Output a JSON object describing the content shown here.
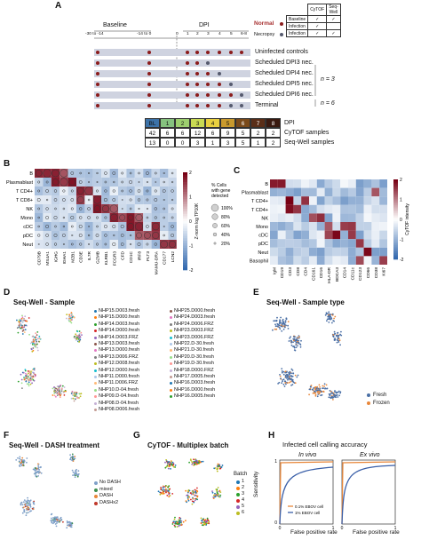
{
  "panels": [
    "A",
    "B",
    "C",
    "D",
    "E",
    "F",
    "G",
    "H"
  ],
  "panel_a": {
    "baseline_label": "Baseline",
    "dpi_label": "DPI",
    "axis_ticks": [
      "-30 to -14",
      "-14 to 0",
      "0",
      "1",
      "2",
      "3",
      "4",
      "5",
      "6-8"
    ],
    "rows": [
      "Uninfected controls",
      "Scheduled DPI3 nec.",
      "Scheduled DPI4 nec.",
      "Scheduled DPI5 nec.",
      "Scheduled DPI6 nec.",
      "Terminal"
    ],
    "n_labels": [
      "n = 3",
      "n = 6"
    ],
    "legend": {
      "normal": "Normal",
      "necropsy": "Necropsy",
      "headers": [
        "CyTOF",
        "Seq-Well"
      ],
      "rows": [
        {
          "label": "Baseline",
          "cytof": "✓",
          "seqwell": "✓"
        },
        {
          "label": "Infection",
          "cytof": "✓",
          "seqwell": ""
        },
        {
          "label": "Infection",
          "cytof": "✓",
          "seqwell": "✓"
        }
      ]
    },
    "sample_table": {
      "header": [
        "BL",
        "1",
        "2",
        "3",
        "4",
        "5",
        "6",
        "7",
        "8"
      ],
      "header_label": "DPI",
      "rows": [
        {
          "label": "CyTOF samples",
          "values": [
            "42",
            "6",
            "6",
            "12",
            "6",
            "9",
            "5",
            "2",
            "2"
          ]
        },
        {
          "label": "Seq-Well samples",
          "values": [
            "13",
            "0",
            "0",
            "3",
            "1",
            "3",
            "5",
            "1",
            "2"
          ]
        }
      ]
    }
  },
  "panel_b": {
    "rows": [
      "B",
      "Plasmablast",
      "T CD4+",
      "T CD8+",
      "NK",
      "Mono",
      "cDC",
      "pDC",
      "Neut"
    ],
    "cols": [
      "CD79B",
      "MS4A1",
      "IGHG",
      "IGHA1",
      "MZB1",
      "CD3E",
      "IL7R",
      "GZMB",
      "KLRB1",
      "FCGR3",
      "CFD",
      "CD1C",
      "IRF8",
      "FLT3",
      "MAMU-DRA",
      "CD177",
      "LCN2"
    ],
    "colorbar_label": "Z-norm log TP10K",
    "colorbar_ticks": [
      "2",
      "1",
      "0",
      "-1",
      "-2"
    ],
    "size_legend_title": "% Cells with gene detected",
    "size_legend": [
      "100%",
      "80%",
      "60%",
      "40%",
      "20%"
    ]
  },
  "panel_c": {
    "rows": [
      "B",
      "Plasmablast",
      "T CD4+",
      "T CD4+",
      "NK",
      "Mono",
      "cDC",
      "pDC",
      "Neut",
      "Basophil"
    ],
    "cols": [
      "IgM",
      "CD19",
      "CD3",
      "CD8",
      "CD4",
      "CD161",
      "CD16",
      "HLA-DR",
      "BDCA3",
      "CD14",
      "CD11c",
      "CD123",
      "CD66",
      "CD38",
      "Ki67"
    ],
    "colorbar_label": "CyTOF intensity",
    "colorbar_ticks": [
      "2",
      "1",
      "0",
      "-1",
      "-2"
    ]
  },
  "panel_d": {
    "title": "Seq-Well - Sample",
    "legend_col1": [
      "NHP15.D003.fresh",
      "NHP15.D000.fresh",
      "NHP14.D003.fresh",
      "NHP14.D000.fresh",
      "NHP14.D003.FRZ",
      "NHP13.D003.fresh",
      "NHP13.D000.fresh",
      "NHP13.D006.FRZ",
      "NHP12.D008.fresh",
      "NHP12.D000.fresh",
      "NHP11.D000.fresh",
      "NHP11.D006.FRZ",
      "NHP10.D-04.fresh",
      "NHP09.D-04.fresh",
      "NHP08.D-04.fresh",
      "NHP08.D006.fresh"
    ],
    "legend_col2": [
      "NHP25.D000.fresh",
      "NHP24.D003.fresh",
      "NHP24.D006.FRZ",
      "NHP23.D003.FRZ",
      "NHP23.D006.FRZ",
      "NHP22.D-30.fresh",
      "NHP21.D-30.fresh",
      "NHP20.D-30.fresh",
      "NHP19.D-30.fresh",
      "NHP18.D000.FRZ",
      "NHP17.D005.fresh",
      "NHP16.D003.fresh",
      "NHP16.D000.fresh",
      "NHP16.D005.fresh"
    ],
    "palette": [
      "#1f77b4",
      "#ff7f0e",
      "#2ca02c",
      "#d62728",
      "#9467bd",
      "#8c564b",
      "#e377c2",
      "#7f7f7f",
      "#bcbd22",
      "#17becf",
      "#aec7e8",
      "#ffbb78",
      "#98df8a",
      "#ff9896",
      "#c5b0d5",
      "#c49c94"
    ]
  },
  "panel_e": {
    "title": "Seq-Well - Sample type",
    "legend": [
      {
        "label": "Fresh",
        "color": "#4a6fa5"
      },
      {
        "label": "Frozen",
        "color": "#e8873a"
      }
    ]
  },
  "panel_f": {
    "title": "Seq-Well - DASH treatment",
    "legend": [
      {
        "label": "No DASH",
        "color": "#7fa0c8"
      },
      {
        "label": "mixed",
        "color": "#3c8f4e"
      },
      {
        "label": "DASH",
        "color": "#e8873a"
      },
      {
        "label": "DASHx2",
        "color": "#c0392b"
      }
    ]
  },
  "panel_g": {
    "title": "CyTOF - Multiplex batch",
    "legend_title": "Batch",
    "legend": [
      {
        "label": "1",
        "color": "#1f77b4"
      },
      {
        "label": "2",
        "color": "#ff7f0e"
      },
      {
        "label": "3",
        "color": "#2ca02c"
      },
      {
        "label": "4",
        "color": "#d62728"
      },
      {
        "label": "5",
        "color": "#9467bd"
      },
      {
        "label": "6",
        "color": "#bcbd22"
      }
    ]
  },
  "panel_h": {
    "title": "Infected cell calling accuracy",
    "subtitles": [
      "In vivo",
      "Ex vivo"
    ],
    "ylabel": "Sensitivity",
    "xlabel": "False positive rate",
    "legend": [
      {
        "label": "0.1% EBOV cell",
        "color": "#e8873a"
      },
      {
        "label": "1% EBOV cell",
        "color": "#3a5fa8"
      }
    ],
    "ticks": [
      "0",
      "1"
    ]
  }
}
